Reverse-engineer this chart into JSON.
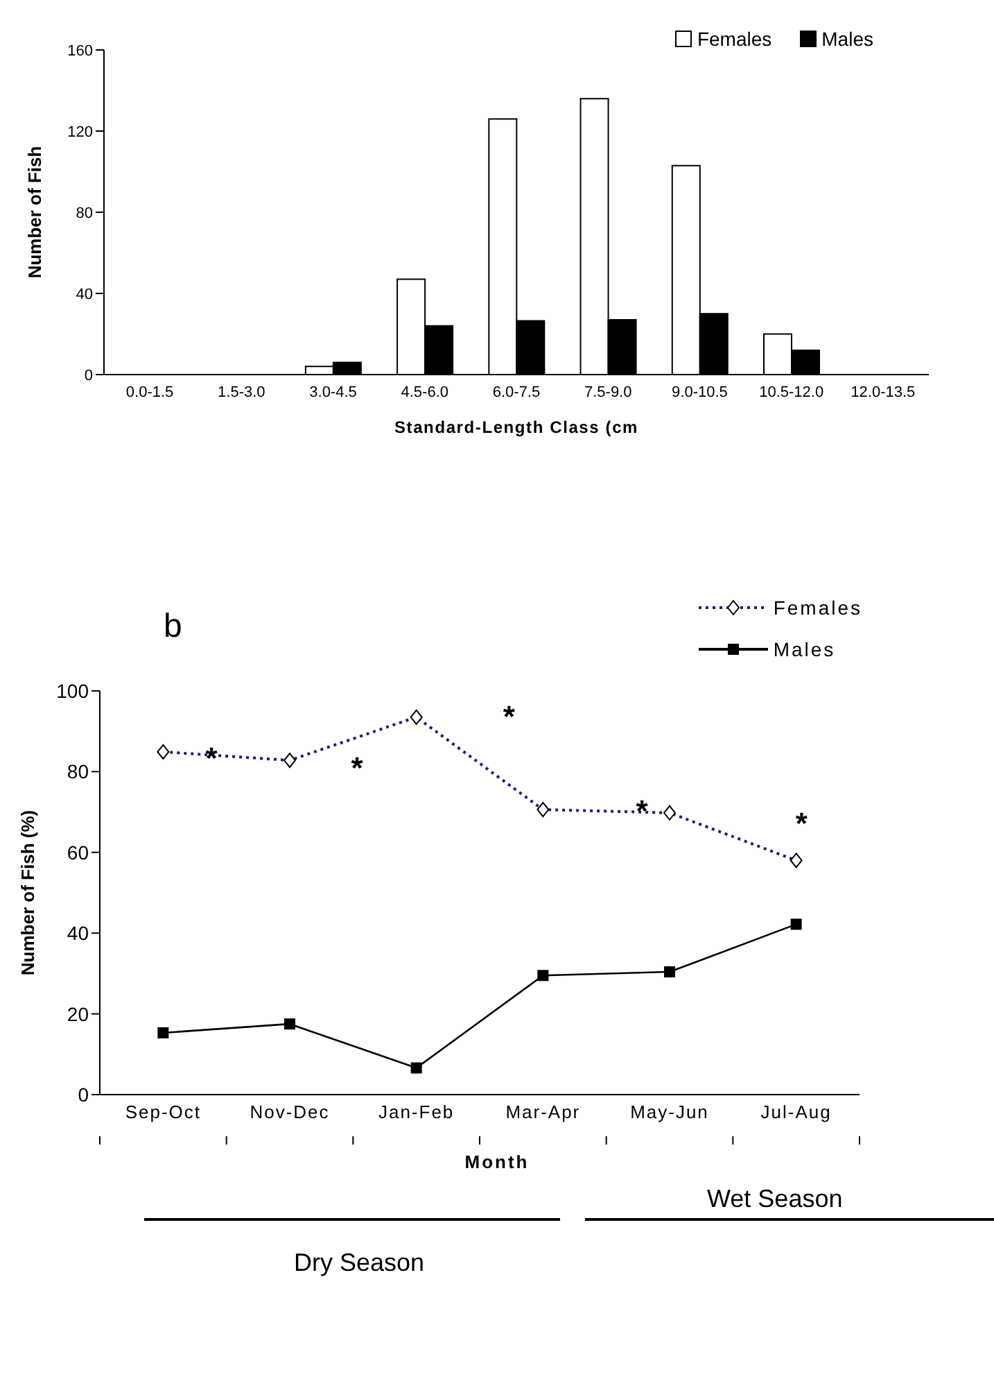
{
  "chart_data": [
    {
      "type": "bar",
      "xlabel": "Standard-Length Class (cm",
      "ylabel": "Number of Fish",
      "categories": [
        "0.0-1.5",
        "1.5-3.0",
        "3.0-4.5",
        "4.5-6.0",
        "6.0-7.5",
        "7.5-9.0",
        "9.0-10.5",
        "10.5-12.0",
        "12.0-13.5"
      ],
      "series": [
        {
          "name": "Females",
          "color": "#ffffff",
          "values": [
            0,
            0,
            4,
            47,
            126,
            136,
            103,
            20,
            0
          ]
        },
        {
          "name": "Males",
          "color": "#000000",
          "values": [
            0,
            0,
            6,
            24,
            26.5,
            27,
            30,
            12,
            0
          ]
        }
      ],
      "ylim": [
        0,
        160
      ],
      "yticks": [
        0,
        40,
        80,
        120,
        160
      ],
      "grid": false,
      "legend": "top right"
    },
    {
      "type": "line",
      "title": "b",
      "xlabel": "Month",
      "ylabel": "Number of Fish (%)",
      "categories": [
        "Sep-Oct",
        "Nov-Dec",
        "Jan-Feb",
        "Mar-Apr",
        "May-Jun",
        "Jul-Aug"
      ],
      "series": [
        {
          "name": "Females",
          "color": "#1a1a80",
          "marker": "diamond",
          "line_style": "dotted",
          "values": [
            84.9,
            82.8,
            93.5,
            70.6,
            69.8,
            58
          ]
        },
        {
          "name": "Males",
          "color": "#000000",
          "marker": "square",
          "line_style": "solid",
          "values": [
            15.3,
            17.5,
            6.6,
            29.5,
            30.4,
            42.2
          ]
        }
      ],
      "ylim": [
        0,
        100
      ],
      "yticks": [
        0,
        20,
        40,
        60,
        80,
        100
      ],
      "grid": false,
      "legend": "top right",
      "annotations": [
        "*",
        "*",
        "*",
        "*",
        "*",
        "Dry Season",
        "Wet Season"
      ]
    }
  ]
}
